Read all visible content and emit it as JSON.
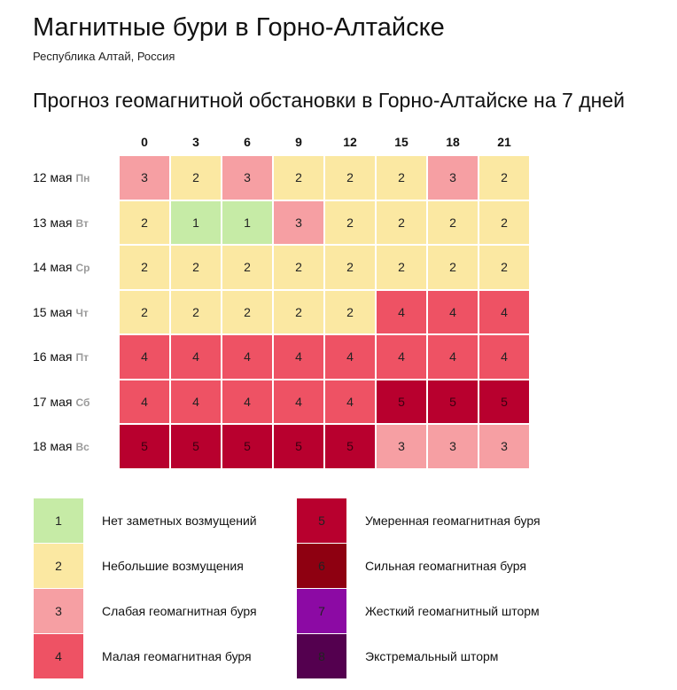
{
  "header": {
    "title": "Магнитные бури в Горно-Алтайске",
    "subtitle": "Республика Алтай, Россия"
  },
  "section_title": "Прогноз геомагнитной обстановки в Горно-Алтайске на 7 дней",
  "colors": {
    "1": "#c6eba6",
    "2": "#fbe8a2",
    "3": "#f69fa3",
    "4": "#ee5264",
    "5": "#b8002e",
    "6": "#8e0011",
    "7": "#8c0aa4",
    "8": "#54004f"
  },
  "chart_data": {
    "type": "heatmap",
    "title": "Прогноз геомагнитной обстановки в Горно-Алтайске на 7 дней",
    "x_labels": [
      "0",
      "3",
      "6",
      "9",
      "12",
      "15",
      "18",
      "21"
    ],
    "rows": [
      {
        "date": "12 мая",
        "weekday": "Пн",
        "values": [
          3,
          2,
          3,
          2,
          2,
          2,
          3,
          2
        ]
      },
      {
        "date": "13 мая",
        "weekday": "Вт",
        "values": [
          2,
          1,
          1,
          3,
          2,
          2,
          2,
          2
        ]
      },
      {
        "date": "14 мая",
        "weekday": "Ср",
        "values": [
          2,
          2,
          2,
          2,
          2,
          2,
          2,
          2
        ]
      },
      {
        "date": "15 мая",
        "weekday": "Чт",
        "values": [
          2,
          2,
          2,
          2,
          2,
          4,
          4,
          4
        ]
      },
      {
        "date": "16 мая",
        "weekday": "Пт",
        "values": [
          4,
          4,
          4,
          4,
          4,
          4,
          4,
          4
        ]
      },
      {
        "date": "17 мая",
        "weekday": "Сб",
        "values": [
          4,
          4,
          4,
          4,
          4,
          5,
          5,
          5
        ]
      },
      {
        "date": "18 мая",
        "weekday": "Вс",
        "values": [
          5,
          5,
          5,
          5,
          5,
          3,
          3,
          3
        ]
      }
    ]
  },
  "legend": [
    {
      "level": "1",
      "label": "Нет заметных возмущений"
    },
    {
      "level": "2",
      "label": "Небольшие возмущения"
    },
    {
      "level": "3",
      "label": "Слабая геомагнитная буря"
    },
    {
      "level": "4",
      "label": "Малая геомагнитная буря"
    },
    {
      "level": "5",
      "label": "Умеренная геомагнитная буря"
    },
    {
      "level": "6",
      "label": "Сильная геомагнитная буря"
    },
    {
      "level": "7",
      "label": "Жесткий геомагнитный шторм"
    },
    {
      "level": "8",
      "label": "Экстремальный шторм"
    }
  ]
}
